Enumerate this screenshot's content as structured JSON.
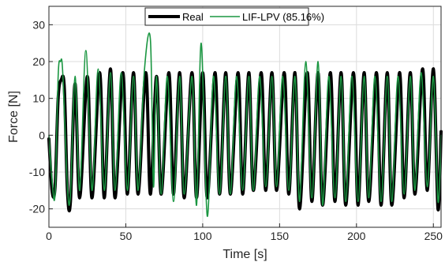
{
  "chart_data": {
    "type": "line",
    "xlabel": "Time [s]",
    "ylabel": "Force [N]",
    "xlim": [
      0,
      255
    ],
    "ylim": [
      -25,
      35
    ],
    "xticks": [
      0,
      50,
      100,
      150,
      200,
      250
    ],
    "yticks": [
      -20,
      -10,
      0,
      10,
      20,
      30
    ],
    "grid": true,
    "legend_position": "top-center",
    "series": [
      {
        "name": "Real",
        "color": "#000000",
        "linewidth": "thick",
        "oscillation_period_s": 7.5,
        "points": [
          {
            "x": 0,
            "y": -1
          },
          {
            "x": 2,
            "y": -15
          },
          {
            "x": 4,
            "y": -14
          },
          {
            "x": 6,
            "y": 10
          },
          {
            "x": 8,
            "y": 15
          },
          {
            "x": 10,
            "y": 13
          },
          {
            "x": 12,
            "y": -15
          },
          {
            "x": 14,
            "y": -18
          },
          {
            "x": 17,
            "y": 14
          },
          {
            "x": 20,
            "y": -17
          },
          {
            "x": 25,
            "y": 16
          },
          {
            "x": 28,
            "y": -17
          },
          {
            "x": 33,
            "y": 17
          },
          {
            "x": 36,
            "y": -17
          },
          {
            "x": 40,
            "y": 18
          },
          {
            "x": 43,
            "y": -17
          },
          {
            "x": 48,
            "y": 17
          },
          {
            "x": 51,
            "y": -16
          },
          {
            "x": 55,
            "y": 17
          },
          {
            "x": 58,
            "y": -16
          },
          {
            "x": 63,
            "y": 17
          },
          {
            "x": 66,
            "y": -16
          },
          {
            "x": 70,
            "y": 16
          },
          {
            "x": 73,
            "y": -16
          },
          {
            "x": 78,
            "y": 17
          },
          {
            "x": 81,
            "y": -16
          },
          {
            "x": 85,
            "y": 17
          },
          {
            "x": 88,
            "y": -17
          },
          {
            "x": 93,
            "y": 17
          },
          {
            "x": 96,
            "y": -17
          },
          {
            "x": 100,
            "y": 17
          },
          {
            "x": 103,
            "y": -17
          },
          {
            "x": 108,
            "y": 17
          },
          {
            "x": 111,
            "y": -16
          },
          {
            "x": 115,
            "y": 17
          },
          {
            "x": 118,
            "y": -16
          },
          {
            "x": 123,
            "y": 17
          },
          {
            "x": 126,
            "y": -16
          },
          {
            "x": 130,
            "y": 17
          },
          {
            "x": 133,
            "y": -15
          },
          {
            "x": 138,
            "y": 17
          },
          {
            "x": 141,
            "y": -15
          },
          {
            "x": 145,
            "y": 17
          },
          {
            "x": 148,
            "y": -15
          },
          {
            "x": 153,
            "y": 17
          },
          {
            "x": 156,
            "y": -16
          },
          {
            "x": 160,
            "y": 17
          },
          {
            "x": 163,
            "y": -20
          },
          {
            "x": 168,
            "y": 17
          },
          {
            "x": 171,
            "y": -18
          },
          {
            "x": 175,
            "y": 17
          },
          {
            "x": 178,
            "y": -19
          },
          {
            "x": 183,
            "y": 17
          },
          {
            "x": 186,
            "y": -18
          },
          {
            "x": 190,
            "y": 17
          },
          {
            "x": 193,
            "y": -19
          },
          {
            "x": 198,
            "y": 17
          },
          {
            "x": 201,
            "y": -19
          },
          {
            "x": 205,
            "y": 17
          },
          {
            "x": 208,
            "y": -18
          },
          {
            "x": 213,
            "y": 17
          },
          {
            "x": 216,
            "y": -19
          },
          {
            "x": 220,
            "y": 17
          },
          {
            "x": 223,
            "y": -19
          },
          {
            "x": 228,
            "y": 17
          },
          {
            "x": 231,
            "y": -17
          },
          {
            "x": 235,
            "y": 17
          },
          {
            "x": 238,
            "y": -16
          },
          {
            "x": 243,
            "y": 18
          },
          {
            "x": 246,
            "y": -15
          },
          {
            "x": 250,
            "y": 18
          },
          {
            "x": 253,
            "y": -20
          },
          {
            "x": 255,
            "y": 1
          }
        ]
      },
      {
        "name": "LIF-LPV (85.16%)",
        "color": "#1a9641",
        "linewidth": "thin",
        "oscillation_period_s": 7.5,
        "points": [
          {
            "x": 0,
            "y": 0
          },
          {
            "x": 2,
            "y": -12
          },
          {
            "x": 4,
            "y": -16
          },
          {
            "x": 6,
            "y": 16
          },
          {
            "x": 7.5,
            "y": 20
          },
          {
            "x": 9,
            "y": 17
          },
          {
            "x": 12,
            "y": -14
          },
          {
            "x": 14,
            "y": -16
          },
          {
            "x": 17,
            "y": 16
          },
          {
            "x": 20,
            "y": -15
          },
          {
            "x": 24,
            "y": 23
          },
          {
            "x": 28,
            "y": -15
          },
          {
            "x": 32,
            "y": 18
          },
          {
            "x": 36,
            "y": -15
          },
          {
            "x": 40,
            "y": 17
          },
          {
            "x": 43,
            "y": -15
          },
          {
            "x": 47,
            "y": 17
          },
          {
            "x": 51,
            "y": -15
          },
          {
            "x": 55,
            "y": 16
          },
          {
            "x": 58,
            "y": -15
          },
          {
            "x": 62,
            "y": 17
          },
          {
            "x": 66,
            "y": 26
          },
          {
            "x": 68,
            "y": -14
          },
          {
            "x": 70,
            "y": 16
          },
          {
            "x": 73,
            "y": -16
          },
          {
            "x": 77,
            "y": 16
          },
          {
            "x": 81,
            "y": -18
          },
          {
            "x": 85,
            "y": 16
          },
          {
            "x": 88,
            "y": -16
          },
          {
            "x": 93,
            "y": 16
          },
          {
            "x": 96,
            "y": -19
          },
          {
            "x": 99,
            "y": 25
          },
          {
            "x": 103,
            "y": -22
          },
          {
            "x": 107,
            "y": 16
          },
          {
            "x": 111,
            "y": -16
          },
          {
            "x": 115,
            "y": 16
          },
          {
            "x": 118,
            "y": -16
          },
          {
            "x": 122,
            "y": 16
          },
          {
            "x": 126,
            "y": -15
          },
          {
            "x": 130,
            "y": 16
          },
          {
            "x": 133,
            "y": -15
          },
          {
            "x": 137,
            "y": 16
          },
          {
            "x": 141,
            "y": -14
          },
          {
            "x": 145,
            "y": 16
          },
          {
            "x": 148,
            "y": -14
          },
          {
            "x": 152,
            "y": 16
          },
          {
            "x": 156,
            "y": -15
          },
          {
            "x": 160,
            "y": 16
          },
          {
            "x": 163,
            "y": -18
          },
          {
            "x": 167,
            "y": 20
          },
          {
            "x": 171,
            "y": -17
          },
          {
            "x": 175,
            "y": 20
          },
          {
            "x": 178,
            "y": -19
          },
          {
            "x": 182,
            "y": 16
          },
          {
            "x": 186,
            "y": -17
          },
          {
            "x": 190,
            "y": 16
          },
          {
            "x": 193,
            "y": -18
          },
          {
            "x": 197,
            "y": 16
          },
          {
            "x": 201,
            "y": -18
          },
          {
            "x": 205,
            "y": 16
          },
          {
            "x": 208,
            "y": -17
          },
          {
            "x": 212,
            "y": 16
          },
          {
            "x": 216,
            "y": -18
          },
          {
            "x": 220,
            "y": 16
          },
          {
            "x": 223,
            "y": -18
          },
          {
            "x": 227,
            "y": 16
          },
          {
            "x": 231,
            "y": -16
          },
          {
            "x": 235,
            "y": 16
          },
          {
            "x": 238,
            "y": -15
          },
          {
            "x": 242,
            "y": 17
          },
          {
            "x": 246,
            "y": -14
          },
          {
            "x": 250,
            "y": 16
          },
          {
            "x": 253,
            "y": -18
          },
          {
            "x": 255,
            "y": 0
          }
        ]
      }
    ]
  }
}
